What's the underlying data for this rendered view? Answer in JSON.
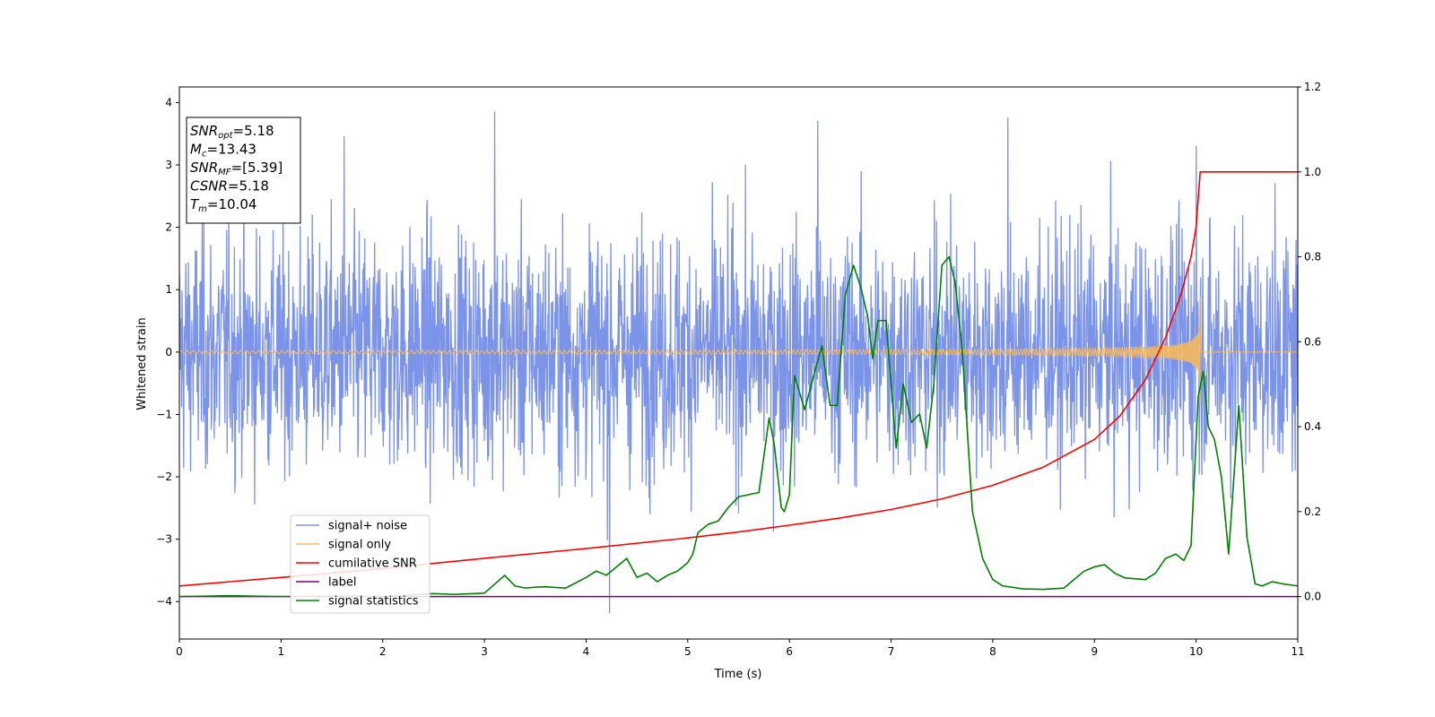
{
  "chart_data": {
    "type": "line",
    "xlabel": "Time (s)",
    "ylabel": "Whitened strain",
    "xlim": [
      0,
      11
    ],
    "ylim": [
      -4.6,
      4.25
    ],
    "ylim_right": [
      -0.1,
      1.2
    ],
    "x_ticks": [
      0,
      1,
      2,
      3,
      4,
      5,
      6,
      7,
      8,
      9,
      10,
      11
    ],
    "y_ticks": [
      4,
      3,
      2,
      1,
      0,
      -1,
      -2,
      -3,
      -4
    ],
    "y_tick_labels": [
      "4",
      "3",
      "2",
      "1",
      "0",
      "−1",
      "−2",
      "−3",
      "−4"
    ],
    "y_right_ticks": [
      1.2,
      1.0,
      0.8,
      0.6,
      0.4,
      0.2,
      0.0
    ],
    "y_right_tick_labels": [
      "1.2",
      "1.0",
      "0.8",
      "0.6",
      "0.4",
      "0.2",
      "0.0"
    ],
    "grid": false,
    "legend_placement": "lower-left",
    "annotation": [
      {
        "sym": "SNR",
        "sub": "opt",
        "val": "=5.18"
      },
      {
        "sym": "M",
        "sub": "c",
        "val": "=13.43"
      },
      {
        "sym": "SNR",
        "sub": "MF",
        "val": "=[5.39]"
      },
      {
        "sym": "CSNR",
        "sub": "",
        "val": "=5.18"
      },
      {
        "sym": "T",
        "sub": "m",
        "val": "=10.04"
      }
    ],
    "series": [
      {
        "name": "signal+ noise",
        "color": "#7b93e8",
        "axis": "left",
        "generated": "noise",
        "noise_band": [
          -2.5,
          2.5
        ],
        "peaks": [
          [
            3.1,
            3.85
          ],
          [
            4.23,
            -4.18
          ],
          [
            6.28,
            3.7
          ],
          [
            1.62,
            3.45
          ],
          [
            8.15,
            3.75
          ],
          [
            10.0,
            3.3
          ]
        ]
      },
      {
        "name": "signal only",
        "color": "#f5b95c",
        "axis": "left",
        "generated": "chirp",
        "merger_time": 10.04,
        "peak_amplitude": 0.95
      },
      {
        "name": "cumilative SNR",
        "color": "#ff0000",
        "axis": "right",
        "x": [
          0,
          1,
          2,
          3,
          4,
          5,
          5.5,
          6,
          6.5,
          7,
          7.5,
          8,
          8.5,
          9,
          9.25,
          9.5,
          9.7,
          9.85,
          9.95,
          10.0,
          10.04,
          11
        ],
        "y": [
          0.025,
          0.045,
          0.066,
          0.09,
          0.113,
          0.138,
          0.152,
          0.168,
          0.185,
          0.205,
          0.23,
          0.262,
          0.305,
          0.37,
          0.425,
          0.51,
          0.61,
          0.71,
          0.8,
          0.87,
          1.0,
          1.0
        ]
      },
      {
        "name": "label",
        "color": "#800080",
        "axis": "right",
        "x": [
          0,
          11
        ],
        "y": [
          0.0,
          0.0
        ]
      },
      {
        "name": "signal statistics",
        "color": "#008000",
        "axis": "right",
        "x": [
          0,
          0.5,
          1,
          1.5,
          2,
          2.5,
          2.7,
          3,
          3.2,
          3.3,
          3.4,
          3.5,
          3.6,
          3.8,
          4.0,
          4.1,
          4.2,
          4.3,
          4.4,
          4.5,
          4.6,
          4.7,
          4.8,
          4.9,
          5.0,
          5.05,
          5.1,
          5.2,
          5.3,
          5.4,
          5.5,
          5.6,
          5.7,
          5.8,
          5.85,
          5.92,
          5.95,
          6.0,
          6.05,
          6.15,
          6.25,
          6.32,
          6.4,
          6.47,
          6.55,
          6.63,
          6.7,
          6.77,
          6.82,
          6.87,
          6.95,
          7.05,
          7.12,
          7.2,
          7.28,
          7.35,
          7.42,
          7.5,
          7.57,
          7.63,
          7.7,
          7.8,
          7.9,
          8.0,
          8.1,
          8.3,
          8.5,
          8.7,
          8.8,
          8.9,
          9.0,
          9.1,
          9.2,
          9.3,
          9.5,
          9.6,
          9.7,
          9.8,
          9.88,
          9.95,
          10.02,
          10.07,
          10.12,
          10.18,
          10.25,
          10.32,
          10.42,
          10.5,
          10.58,
          10.65,
          10.75,
          10.85,
          11
        ],
        "y": [
          0.0,
          0.002,
          0.0,
          0.001,
          0.0,
          0.007,
          0.005,
          0.008,
          0.05,
          0.025,
          0.02,
          0.022,
          0.023,
          0.02,
          0.045,
          0.06,
          0.05,
          0.07,
          0.09,
          0.045,
          0.055,
          0.035,
          0.05,
          0.06,
          0.08,
          0.1,
          0.15,
          0.17,
          0.178,
          0.21,
          0.235,
          0.24,
          0.245,
          0.42,
          0.36,
          0.21,
          0.2,
          0.24,
          0.52,
          0.44,
          0.53,
          0.59,
          0.45,
          0.45,
          0.71,
          0.78,
          0.73,
          0.66,
          0.56,
          0.65,
          0.65,
          0.35,
          0.5,
          0.41,
          0.43,
          0.35,
          0.5,
          0.78,
          0.8,
          0.74,
          0.58,
          0.2,
          0.09,
          0.04,
          0.025,
          0.018,
          0.017,
          0.02,
          0.04,
          0.06,
          0.07,
          0.075,
          0.055,
          0.044,
          0.04,
          0.055,
          0.09,
          0.1,
          0.085,
          0.12,
          0.47,
          0.53,
          0.4,
          0.37,
          0.28,
          0.1,
          0.45,
          0.14,
          0.03,
          0.025,
          0.035,
          0.03,
          0.025
        ]
      }
    ]
  }
}
